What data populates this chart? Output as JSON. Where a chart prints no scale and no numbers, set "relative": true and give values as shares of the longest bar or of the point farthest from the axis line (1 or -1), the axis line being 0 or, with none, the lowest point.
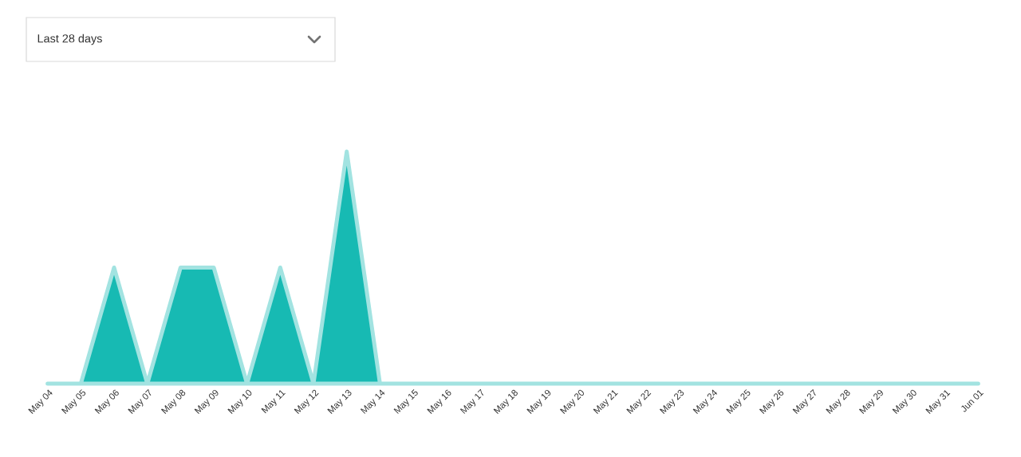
{
  "chart_data": {
    "type": "area",
    "relative": true,
    "color": "#17bab3",
    "annotations": [
      "Last 28 days"
    ],
    "categories": [
      "May 04",
      "May 05",
      "May 06",
      "May 07",
      "May 08",
      "May 09",
      "May 10",
      "May 11",
      "May 12",
      "May 13",
      "May 14",
      "May 15",
      "May 16",
      "May 17",
      "May 18",
      "May 19",
      "May 20",
      "May 21",
      "May 22",
      "May 23",
      "May 24",
      "May 25",
      "May 26",
      "May 27",
      "May 28",
      "May 29",
      "May 30",
      "May 31",
      "Jun 01"
    ],
    "values": [
      0,
      0,
      0.5,
      0,
      0.5,
      0.5,
      0,
      0.5,
      0,
      1,
      0,
      0,
      0,
      0,
      0,
      0,
      0,
      0,
      0,
      0,
      0,
      0,
      0,
      0,
      0,
      0,
      0,
      0,
      0
    ]
  }
}
